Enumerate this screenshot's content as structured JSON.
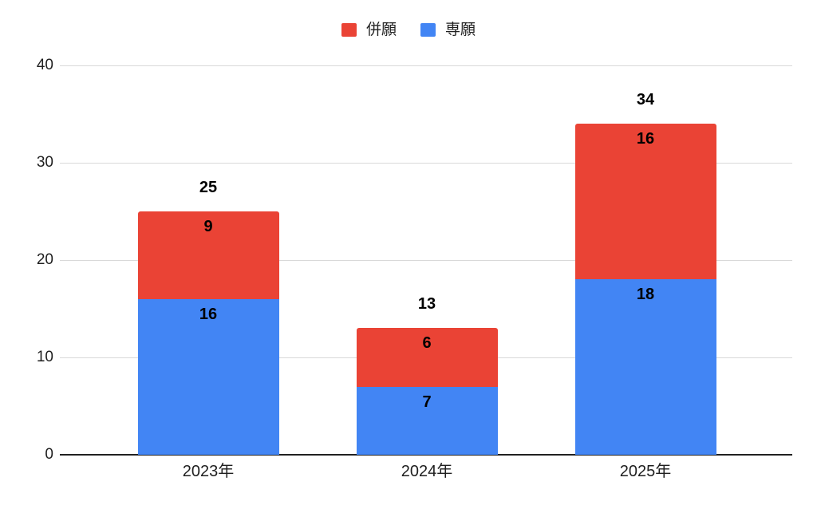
{
  "chart_data": {
    "type": "bar",
    "stacked": true,
    "title": "",
    "categories": [
      "2023年",
      "2024年",
      "2025年"
    ],
    "series": [
      {
        "name": "併願",
        "color": "#EA4335",
        "values": [
          9,
          6,
          16
        ]
      },
      {
        "name": "専願",
        "color": "#4285F4",
        "values": [
          16,
          7,
          18
        ]
      }
    ],
    "totals": [
      25,
      13,
      34
    ],
    "ylim": [
      0,
      40
    ],
    "yticks": [
      0,
      10,
      20,
      30,
      40
    ],
    "grid": true,
    "legend_position": "top-center",
    "value_labels": "inside-top-of-each-segment",
    "total_labels": "above-bar"
  },
  "colors": {
    "background": "#ffffff",
    "grid": "#d9d9d9",
    "axis": "#212121",
    "tick_text": "#1f1f1f",
    "value_label_text": "#000000"
  }
}
